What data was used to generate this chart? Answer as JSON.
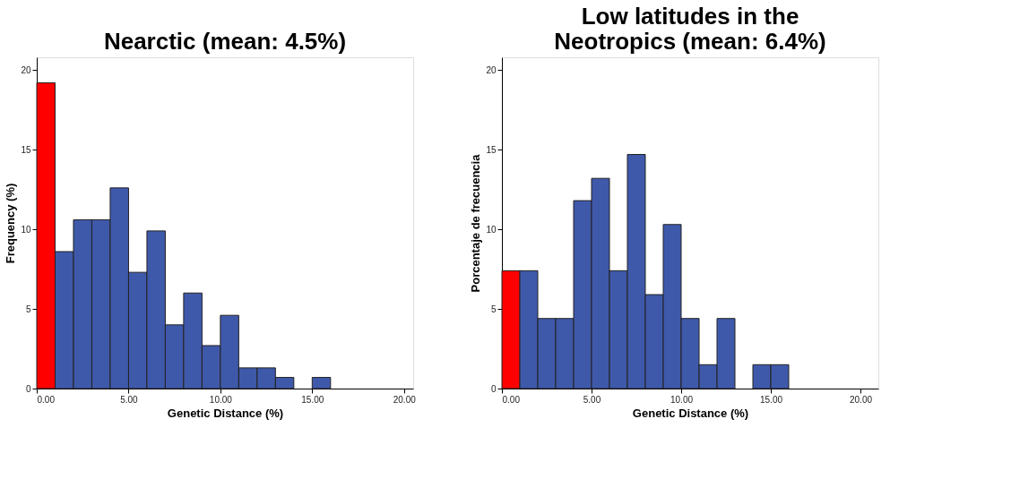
{
  "chart_data": [
    {
      "type": "histogram",
      "title": "Nearctic (mean: 4.5%)",
      "xlabel": "Genetic Distance (%)",
      "ylabel": "Frequency (%)",
      "bins": [
        0,
        1,
        2,
        3,
        4,
        5,
        6,
        7,
        8,
        9,
        10,
        11,
        12,
        13,
        14,
        15,
        16
      ],
      "values": [
        19.2,
        8.6,
        10.6,
        10.6,
        12.6,
        7.3,
        9.9,
        4.0,
        6.0,
        2.7,
        4.6,
        1.3,
        1.3,
        0.7,
        0,
        0.7
      ],
      "colors": [
        "#ff0000",
        "#3f59aa",
        "#3f59aa",
        "#3f59aa",
        "#3f59aa",
        "#3f59aa",
        "#3f59aa",
        "#3f59aa",
        "#3f59aa",
        "#3f59aa",
        "#3f59aa",
        "#3f59aa",
        "#3f59aa",
        "#3f59aa",
        "#3f59aa",
        "#3f59aa"
      ],
      "xlim": [
        0,
        20.5
      ],
      "ylim": [
        0,
        20.8
      ],
      "xticks": [
        {
          "value": 0,
          "label": "0.00"
        },
        {
          "value": 5,
          "label": "5.00"
        },
        {
          "value": 10,
          "label": "10.00"
        },
        {
          "value": 15,
          "label": "15.00"
        },
        {
          "value": 20,
          "label": "20.00"
        }
      ],
      "yticks": [
        0,
        5,
        10,
        15,
        20
      ],
      "grid": false
    },
    {
      "type": "histogram",
      "title": "Low latitudes in the Neotropics (mean: 6.4%)",
      "xlabel": "Genetic Distance (%)",
      "ylabel": "Porcentaje de frecuencia",
      "bins": [
        0,
        1,
        2,
        3,
        4,
        5,
        6,
        7,
        8,
        9,
        10,
        11,
        12,
        13,
        14,
        15,
        16
      ],
      "values": [
        7.4,
        7.4,
        4.4,
        4.4,
        11.8,
        13.2,
        7.4,
        14.7,
        5.9,
        10.3,
        4.4,
        1.5,
        4.4,
        0,
        1.5,
        1.5
      ],
      "colors": [
        "#ff0000",
        "#3f59aa",
        "#3f59aa",
        "#3f59aa",
        "#3f59aa",
        "#3f59aa",
        "#3f59aa",
        "#3f59aa",
        "#3f59aa",
        "#3f59aa",
        "#3f59aa",
        "#3f59aa",
        "#3f59aa",
        "#3f59aa",
        "#3f59aa",
        "#3f59aa"
      ],
      "xlim": [
        0,
        21
      ],
      "ylim": [
        0,
        20.8
      ],
      "xticks": [
        {
          "value": 0,
          "label": "0.00"
        },
        {
          "value": 5,
          "label": "5.00"
        },
        {
          "value": 10,
          "label": "10.00"
        },
        {
          "value": 15,
          "label": "15.00"
        },
        {
          "value": 20,
          "label": "20.00"
        }
      ],
      "yticks": [
        0,
        5,
        10,
        15,
        20
      ],
      "grid": false
    }
  ]
}
